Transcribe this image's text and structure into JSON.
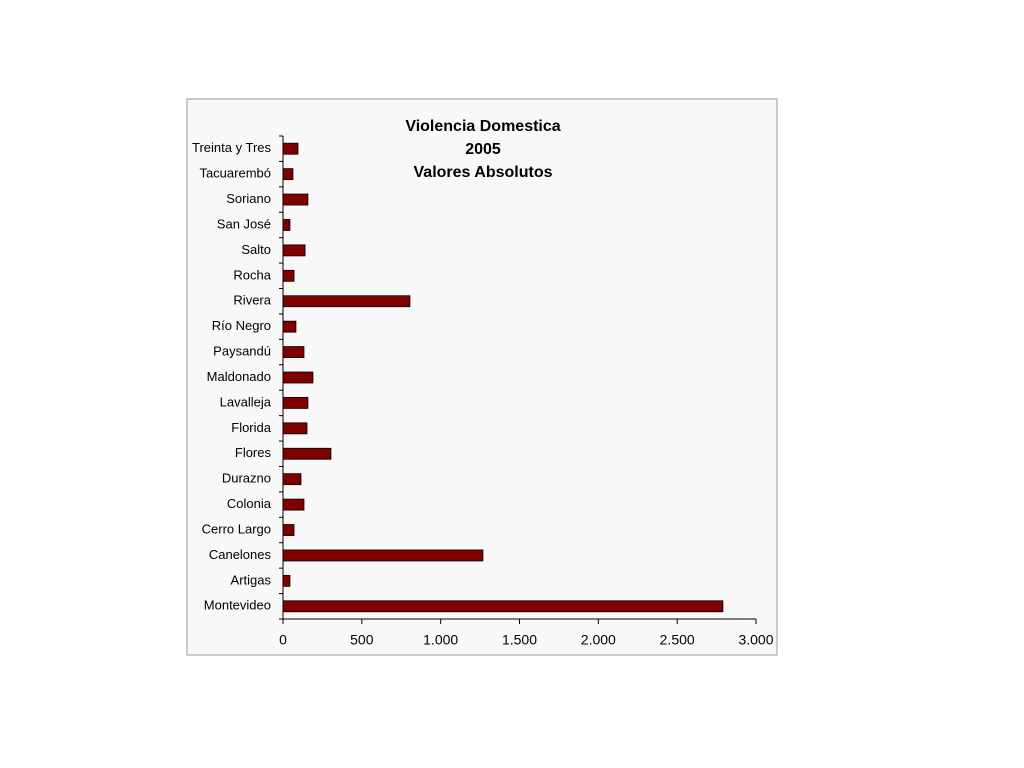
{
  "chart_data": {
    "type": "bar",
    "orientation": "horizontal",
    "title_lines": [
      "Violencia Domestica",
      "2005",
      "Valores Absolutos"
    ],
    "categories": [
      "Montevideo",
      "Artigas",
      "Canelones",
      "Cerro Largo",
      "Colonia",
      "Durazno",
      "Flores",
      "Florida",
      "Lavalleja",
      "Maldonado",
      "Paysandú",
      "Río Negro",
      "Rivera",
      "Rocha",
      "Salto",
      "San José",
      "Soriano",
      "Tacuarembó",
      "Treinta y Tres"
    ],
    "values": [
      2790,
      44,
      1268,
      70,
      133,
      114,
      304,
      152,
      158,
      190,
      133,
      82,
      805,
      70,
      140,
      44,
      158,
      63,
      95
    ],
    "color": "#800000",
    "xlim": [
      0,
      3000
    ],
    "xticks": [
      0,
      500,
      {
        "value": 1000,
        "label": "1.000"
      },
      {
        "value": 1500,
        "label": "1.500"
      },
      {
        "value": 2000,
        "label": "2.000"
      },
      {
        "value": 2500,
        "label": "2.500"
      },
      {
        "value": 3000,
        "label": "3.000"
      }
    ],
    "grid": false
  }
}
